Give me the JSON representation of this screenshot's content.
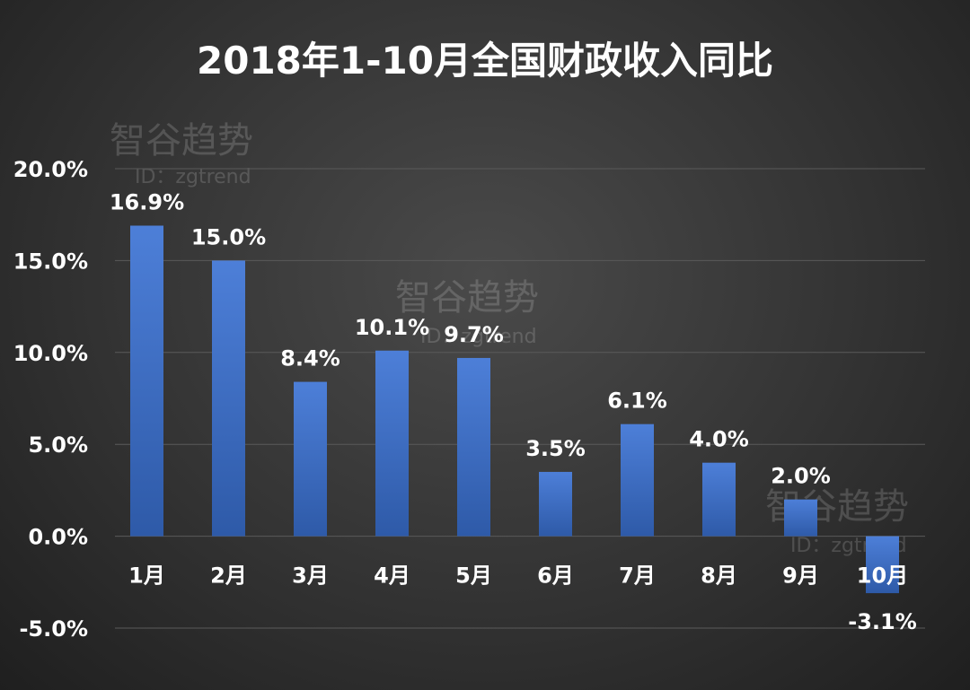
{
  "chart_data": {
    "type": "bar",
    "title": "2018年1-10月全国财政收入同比",
    "categories": [
      "1月",
      "2月",
      "3月",
      "4月",
      "5月",
      "6月",
      "7月",
      "8月",
      "9月",
      "10月"
    ],
    "values": [
      16.9,
      15.0,
      8.4,
      10.1,
      9.7,
      3.5,
      6.1,
      4.0,
      2.0,
      -3.1
    ],
    "data_labels": [
      "16.9%",
      "15.0%",
      "8.4%",
      "10.1%",
      "9.7%",
      "3.5%",
      "6.1%",
      "4.0%",
      "2.0%",
      "-3.1%"
    ],
    "y_ticks": [
      20,
      15,
      10,
      5,
      0,
      -5
    ],
    "y_tick_labels": [
      "20.0%",
      "15.0%",
      "10.0%",
      "5.0%",
      "0.0%",
      "-5.0%"
    ],
    "ylim": [
      -5,
      20
    ],
    "grid": true,
    "bar_color_top": "#4d7fd8",
    "bar_color_bottom": "#2e5aa8"
  },
  "watermark": {
    "main": "智谷趋势",
    "sub": "ID：zgtrend"
  }
}
